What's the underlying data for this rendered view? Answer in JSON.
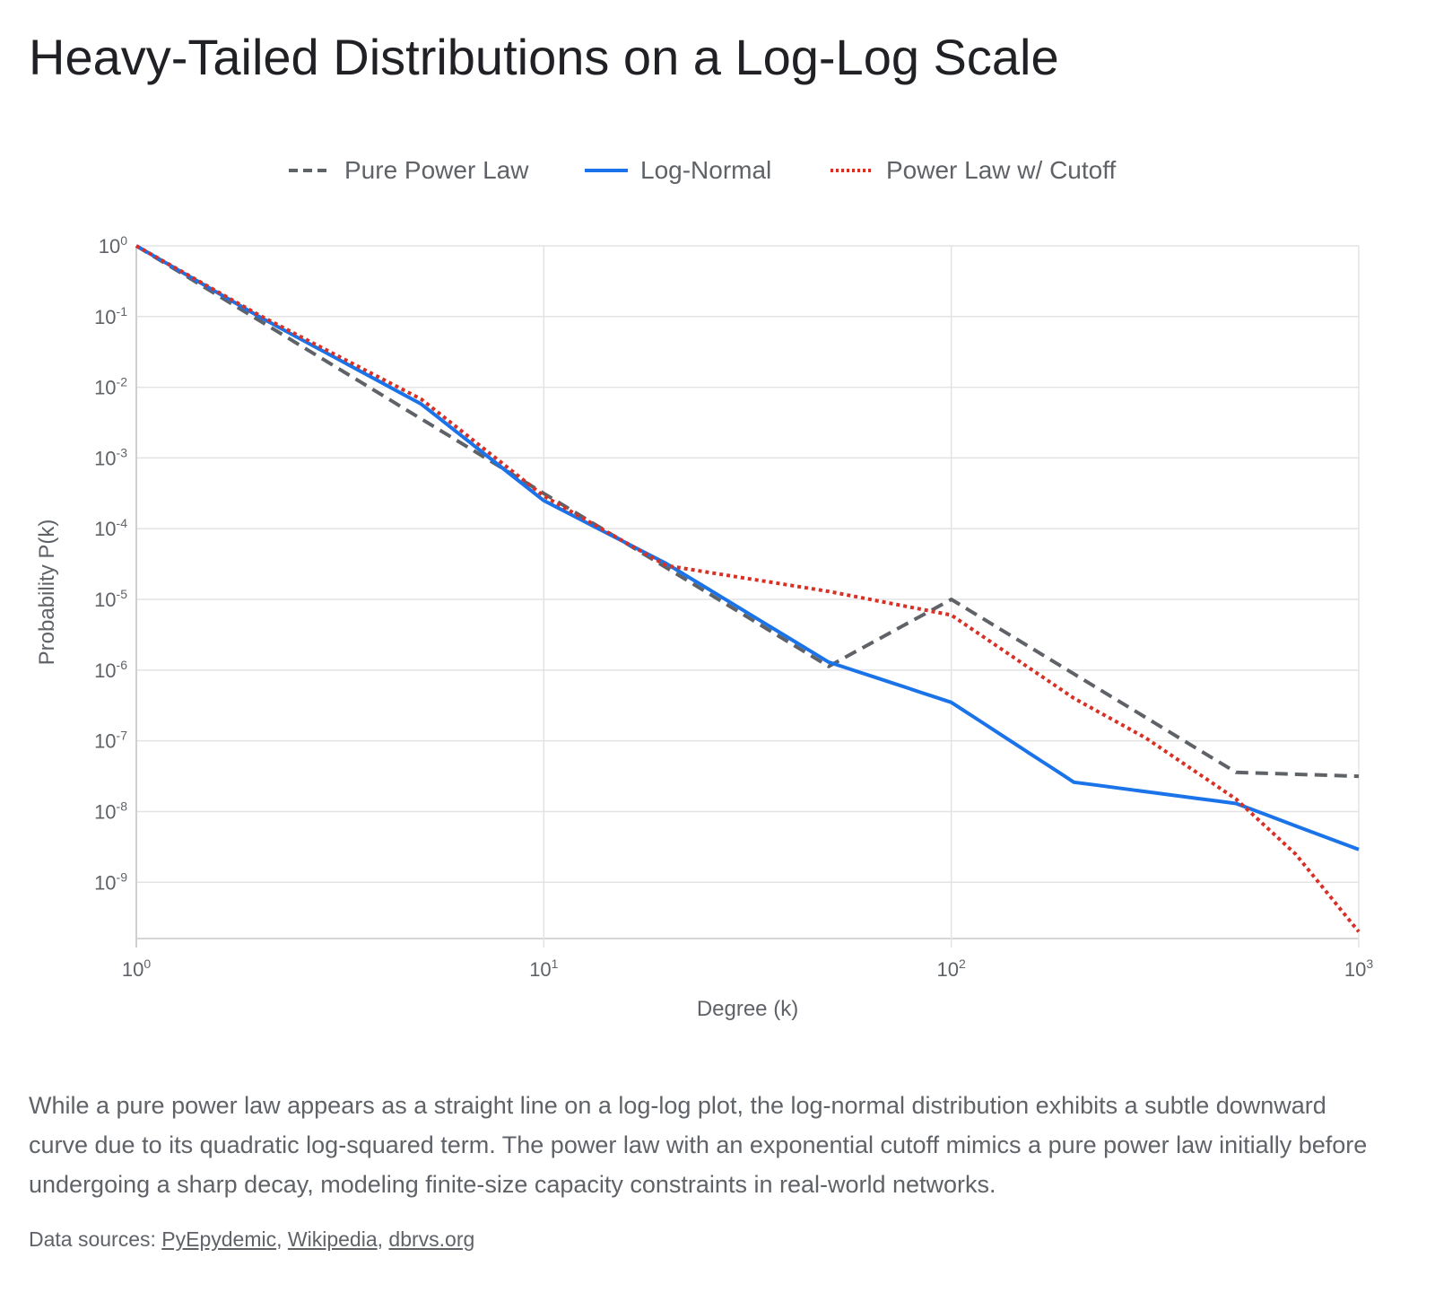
{
  "title": "Heavy-Tailed Distributions on a Log-Log Scale",
  "description": "While a pure power law appears as a straight line on a log-log plot, the log-normal distribution exhibits a subtle downward curve due to its quadratic log-squared term. The power law with an exponential cutoff mimics a pure power law initially before undergoing a sharp decay, modeling finite-size capacity constraints in real-world networks.",
  "sources": {
    "prefix": "Data sources: ",
    "links": [
      "PyEpydemic",
      "Wikipedia",
      "dbrvs.org"
    ],
    "separator": ", "
  },
  "chart_data": {
    "type": "line",
    "xlabel": "Degree (k)",
    "ylabel": "Probability P(k)",
    "x_scale": "log",
    "y_scale": "log",
    "xlim": [
      1,
      1000
    ],
    "ylim": [
      1.6e-10,
      1
    ],
    "x_ticks": [
      {
        "value": 1,
        "base": "10",
        "exp": "0"
      },
      {
        "value": 10,
        "base": "10",
        "exp": "1"
      },
      {
        "value": 100,
        "base": "10",
        "exp": "2"
      },
      {
        "value": 1000,
        "base": "10",
        "exp": "3"
      }
    ],
    "y_ticks": [
      {
        "value": 1,
        "base": "10",
        "exp": "0"
      },
      {
        "value": 0.1,
        "base": "10",
        "exp": "-1"
      },
      {
        "value": 0.01,
        "base": "10",
        "exp": "-2"
      },
      {
        "value": 0.001,
        "base": "10",
        "exp": "-3"
      },
      {
        "value": 0.0001,
        "base": "10",
        "exp": "-4"
      },
      {
        "value": 1e-05,
        "base": "10",
        "exp": "-5"
      },
      {
        "value": 1e-06,
        "base": "10",
        "exp": "-6"
      },
      {
        "value": 1e-07,
        "base": "10",
        "exp": "-7"
      },
      {
        "value": 1e-08,
        "base": "10",
        "exp": "-8"
      },
      {
        "value": 1e-09,
        "base": "10",
        "exp": "-9"
      }
    ],
    "grid": true,
    "legend_position": "top",
    "series": [
      {
        "name": "Pure Power Law",
        "color": "#5f6368",
        "style": "dashed",
        "x": [
          1,
          2,
          5,
          10,
          20,
          50,
          100,
          200,
          500,
          1000
        ],
        "y": [
          1,
          0.0884,
          0.00358,
          0.000316,
          2.8e-05,
          1.13e-06,
          1e-05,
          8.84e-07,
          3.58e-08,
          3.16e-08
        ]
      },
      {
        "name": "Log-Normal",
        "color": "#1a73e8",
        "style": "solid",
        "x": [
          1,
          2,
          5,
          10,
          20,
          50,
          100,
          200,
          500,
          1000
        ],
        "y": [
          1,
          0.1,
          0.0058,
          0.00025,
          3.2e-05,
          1.3e-06,
          3.5e-07,
          2.6e-08,
          1.3e-08,
          2.9e-09
        ]
      },
      {
        "name": "Power Law w/ Cutoff",
        "color": "#d93025",
        "style": "dotted",
        "x": [
          1,
          2,
          5,
          10,
          20,
          50,
          100,
          200,
          300,
          500,
          700,
          1000
        ],
        "y": [
          1,
          0.105,
          0.0068,
          0.00029,
          3e-05,
          1.3e-05,
          6e-06,
          4e-07,
          1.1e-07,
          1.5e-08,
          2.5e-09,
          2e-10
        ]
      }
    ]
  }
}
